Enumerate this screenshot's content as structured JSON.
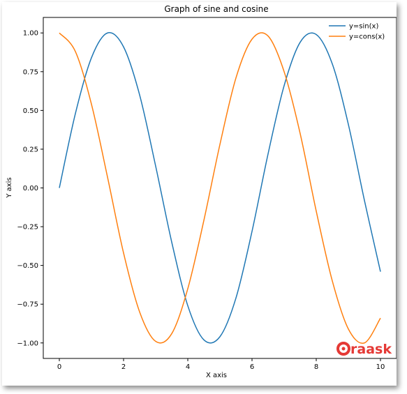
{
  "chart_data": {
    "type": "line",
    "title": "Graph of sine and cosine",
    "xlabel": "X axis",
    "ylabel": "Y axis",
    "xlim": [
      -0.5,
      10.5
    ],
    "ylim": [
      -1.1,
      1.1
    ],
    "x_ticks": [
      0,
      2,
      4,
      6,
      8,
      10
    ],
    "x_tick_labels": [
      "0",
      "2",
      "4",
      "6",
      "8",
      "10"
    ],
    "y_ticks": [
      1.0,
      0.75,
      0.5,
      0.25,
      0.0,
      -0.25,
      -0.5,
      -0.75,
      -1.0
    ],
    "y_tick_labels": [
      "1.00",
      "0.75",
      "0.50",
      "0.25",
      "0.00",
      "−0.25",
      "−0.50",
      "−0.75",
      "−1.00"
    ],
    "grid": false,
    "legend_position": "top-right",
    "x": [
      0,
      0.5,
      1.0,
      1.5,
      2.0,
      2.5,
      3.0,
      3.5,
      4.0,
      4.5,
      5.0,
      5.5,
      6.0,
      6.5,
      7.0,
      7.5,
      8.0,
      8.5,
      9.0,
      9.5,
      10.0
    ],
    "series": [
      {
        "name": "y=sin(x)",
        "color": "#1f77b4",
        "values": [
          0.0,
          0.48,
          0.84,
          1.0,
          0.91,
          0.6,
          0.14,
          -0.35,
          -0.76,
          -0.98,
          -0.96,
          -0.71,
          -0.28,
          0.22,
          0.66,
          0.94,
          0.99,
          0.8,
          0.41,
          -0.08,
          -0.54
        ]
      },
      {
        "name": "y=cons(x)",
        "color": "#ff7f0e",
        "values": [
          1.0,
          0.88,
          0.54,
          0.07,
          -0.42,
          -0.8,
          -0.99,
          -0.94,
          -0.65,
          -0.21,
          0.28,
          0.71,
          0.96,
          0.98,
          0.75,
          0.35,
          -0.15,
          -0.6,
          -0.91,
          -1.0,
          -0.84
        ]
      }
    ]
  },
  "watermark": {
    "text": "raask",
    "color": "#e53935"
  }
}
